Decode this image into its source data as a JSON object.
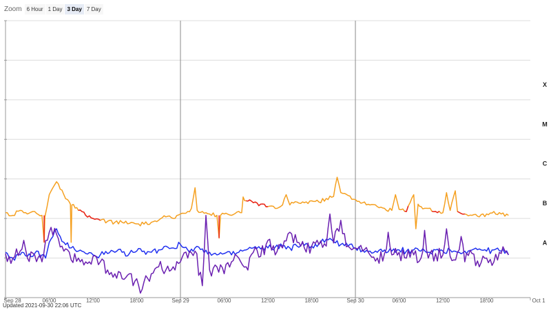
{
  "zoom": {
    "label": "Zoom",
    "options": [
      "6 Hour",
      "1 Day",
      "3 Day",
      "7 Day"
    ],
    "selected": "3 Day"
  },
  "updated_text": "Updated 2021-09-30 22:06 UTC",
  "colors": {
    "long": "#f5a020",
    "long_high": "#e8231e",
    "short": "#2030f0",
    "short_dim": "#6a1fb0",
    "grid": "#dcdcdc",
    "day_line": "#8a8a8a",
    "axis": "#999999"
  },
  "chart_data": {
    "type": "line",
    "title": "",
    "xlabel": "",
    "ylabel": "",
    "y_scale": "log",
    "ylim": [
      1e-09,
      0.01
    ],
    "xlim_hours": [
      0,
      69
    ],
    "grid": true,
    "flare_classes": [
      {
        "label": "X",
        "value": 0.0001
      },
      {
        "label": "M",
        "value": 1e-05
      },
      {
        "label": "C",
        "value": 1e-06
      },
      {
        "label": "B",
        "value": 1e-07
      },
      {
        "label": "A",
        "value": 1e-08
      }
    ],
    "x_ticks": [
      {
        "label": "Sep 28",
        "hour": 0,
        "major": true
      },
      {
        "label": "06:00",
        "hour": 6,
        "major": false
      },
      {
        "label": "12:00",
        "hour": 12,
        "major": false
      },
      {
        "label": "18:00",
        "hour": 18,
        "major": false
      },
      {
        "label": "Sep 29",
        "hour": 24,
        "major": true
      },
      {
        "label": "06:00",
        "hour": 30,
        "major": false
      },
      {
        "label": "12:00",
        "hour": 36,
        "major": false
      },
      {
        "label": "18:00",
        "hour": 42,
        "major": false
      },
      {
        "label": "Sep 30",
        "hour": 48,
        "major": true
      },
      {
        "label": "06:00",
        "hour": 54,
        "major": false
      },
      {
        "label": "12:00",
        "hour": 60,
        "major": false
      },
      {
        "label": "18:00",
        "hour": 66,
        "major": false
      },
      {
        "label": "Oct 1",
        "hour": 72,
        "major": true
      }
    ],
    "series": [
      {
        "key": "long",
        "points": [
          [
            0,
            1.4e-07
          ],
          [
            1,
            1.2e-07
          ],
          [
            2,
            1.6e-07
          ],
          [
            3,
            1.3e-07
          ],
          [
            4,
            1.5e-07
          ],
          [
            5,
            1.2e-07
          ],
          [
            5.3,
            2.5e-08
          ],
          [
            5.4,
            1.1e-07
          ],
          [
            6,
            4e-07
          ],
          [
            6.5,
            6e-07
          ],
          [
            7,
            8.5e-07
          ],
          [
            7.5,
            5.5e-07
          ],
          [
            8,
            4e-07
          ],
          [
            8.5,
            3e-07
          ],
          [
            8.9,
            2.3e-07
          ],
          [
            9,
            2.5e-08
          ],
          [
            9.1,
            2.2e-07
          ],
          [
            10,
            1.6e-07
          ],
          [
            11,
            1.2e-07
          ],
          [
            12,
            1e-07
          ],
          [
            13,
            9e-08
          ],
          [
            14,
            8.5e-08
          ],
          [
            15,
            8e-08
          ],
          [
            16,
            8e-08
          ],
          [
            17,
            7.5e-08
          ],
          [
            18,
            7.3e-08
          ],
          [
            19,
            7.2e-08
          ],
          [
            20,
            8e-08
          ],
          [
            21,
            9e-08
          ],
          [
            22,
            1.1e-07
          ],
          [
            23,
            1e-07
          ],
          [
            24,
            1.3e-07
          ],
          [
            25,
            1.5e-07
          ],
          [
            25.5,
            1.8e-07
          ],
          [
            26,
            6e-07
          ],
          [
            26.3,
            1.6e-07
          ],
          [
            27,
            1.5e-07
          ],
          [
            28,
            1.3e-07
          ],
          [
            29,
            1.2e-07
          ],
          [
            29.3,
            3.2e-08
          ],
          [
            29.5,
            1.2e-07
          ],
          [
            30,
            1.3e-07
          ],
          [
            31,
            1.2e-07
          ],
          [
            32,
            1.5e-07
          ],
          [
            32.4,
            1.4e-07
          ],
          [
            32.6,
            3.5e-07
          ],
          [
            33,
            2.8e-07
          ],
          [
            34,
            2.5e-07
          ],
          [
            35,
            2.3e-07
          ],
          [
            36,
            2e-07
          ],
          [
            37,
            1.8e-07
          ],
          [
            38,
            2.2e-07
          ],
          [
            38.5,
            4e-07
          ],
          [
            39,
            2.2e-07
          ],
          [
            40,
            2.6e-07
          ],
          [
            41,
            2.5e-07
          ],
          [
            42,
            2.8e-07
          ],
          [
            43,
            2.6e-07
          ],
          [
            44,
            3.2e-07
          ],
          [
            45,
            3.6e-07
          ],
          [
            45.5,
            1.1e-06
          ],
          [
            46,
            4.5e-07
          ],
          [
            47,
            3.8e-07
          ],
          [
            48,
            3e-07
          ],
          [
            49,
            2.5e-07
          ],
          [
            50,
            2.2e-07
          ],
          [
            51,
            2e-07
          ],
          [
            52,
            1.8e-07
          ],
          [
            53,
            1.6e-07
          ],
          [
            53.5,
            4e-07
          ],
          [
            54,
            1.7e-07
          ],
          [
            55,
            1.5e-07
          ],
          [
            55.5,
            2.5e-07
          ],
          [
            56,
            4e-07
          ],
          [
            56.3,
            5.5e-08
          ],
          [
            56.6,
            2.3e-07
          ],
          [
            57,
            2e-07
          ],
          [
            58,
            1.8e-07
          ],
          [
            59,
            1.5e-07
          ],
          [
            60,
            1.4e-07
          ],
          [
            60.5,
            4.5e-07
          ],
          [
            61,
            1.6e-07
          ],
          [
            61.7,
            5e-07
          ],
          [
            62,
            1.5e-07
          ],
          [
            63,
            1.3e-07
          ],
          [
            64,
            1.2e-07
          ],
          [
            65,
            1.1e-07
          ],
          [
            66,
            1.3e-07
          ],
          [
            67,
            1.5e-07
          ],
          [
            68,
            1.3e-07
          ],
          [
            69,
            1.2e-07
          ]
        ]
      },
      {
        "key": "short",
        "points": [
          [
            0,
            1.4e-08
          ],
          [
            1,
            1e-08
          ],
          [
            2,
            1.2e-08
          ],
          [
            3,
            1.1e-08
          ],
          [
            4,
            1.3e-08
          ],
          [
            5,
            1.2e-08
          ],
          [
            5.5,
            1e-08
          ],
          [
            6,
            2.5e-08
          ],
          [
            6.5,
            3.5e-08
          ],
          [
            7,
            5.5e-08
          ],
          [
            7.5,
            3.5e-08
          ],
          [
            8,
            2.5e-08
          ],
          [
            9,
            1.8e-08
          ],
          [
            10,
            1.5e-08
          ],
          [
            11,
            1.3e-08
          ],
          [
            12,
            1.2e-08
          ],
          [
            13,
            1.2e-08
          ],
          [
            14,
            1.3e-08
          ],
          [
            15,
            1.4e-08
          ],
          [
            16,
            1.4e-08
          ],
          [
            17,
            1.3e-08
          ],
          [
            18,
            1.5e-08
          ],
          [
            19,
            1.5e-08
          ],
          [
            20,
            1.4e-08
          ],
          [
            21,
            1.6e-08
          ],
          [
            22,
            2e-08
          ],
          [
            23,
            1.8e-08
          ],
          [
            24,
            2.2e-08
          ],
          [
            25,
            1.6e-08
          ],
          [
            26,
            1.8e-08
          ],
          [
            27,
            1.7e-08
          ],
          [
            28,
            1.4e-08
          ],
          [
            29,
            1.2e-08
          ],
          [
            30,
            1.3e-08
          ],
          [
            31,
            1.2e-08
          ],
          [
            32,
            1.4e-08
          ],
          [
            33,
            1.6e-08
          ],
          [
            34,
            1.8e-08
          ],
          [
            35,
            1.7e-08
          ],
          [
            36,
            1.8e-08
          ],
          [
            37,
            1.9e-08
          ],
          [
            38,
            2e-08
          ],
          [
            39,
            1.8e-08
          ],
          [
            40,
            2e-08
          ],
          [
            41,
            2.1e-08
          ],
          [
            42,
            2e-08
          ],
          [
            43,
            2.3e-08
          ],
          [
            44,
            3e-08
          ],
          [
            45,
            2.6e-08
          ],
          [
            46,
            2.2e-08
          ],
          [
            47,
            2e-08
          ],
          [
            48,
            1.8e-08
          ],
          [
            49,
            1.6e-08
          ],
          [
            50,
            1.5e-08
          ],
          [
            51,
            1.4e-08
          ],
          [
            52,
            1.6e-08
          ],
          [
            53,
            1.5e-08
          ],
          [
            54,
            1.6e-08
          ],
          [
            55,
            1.5e-08
          ],
          [
            56,
            1.6e-08
          ],
          [
            57,
            1.5e-08
          ],
          [
            58,
            1.4e-08
          ],
          [
            59,
            1.6e-08
          ],
          [
            60,
            1.5e-08
          ],
          [
            61,
            1.6e-08
          ],
          [
            62,
            1.4e-08
          ],
          [
            63,
            1.5e-08
          ],
          [
            64,
            1.6e-08
          ],
          [
            65,
            1.7e-08
          ],
          [
            66,
            1.5e-08
          ],
          [
            67,
            1.6e-08
          ],
          [
            68,
            1.5e-08
          ],
          [
            69,
            1.2e-08
          ]
        ]
      },
      {
        "key": "short_dim",
        "points": [
          [
            0,
            1.3e-08
          ],
          [
            1,
            1e-08
          ],
          [
            2,
            1.5e-08
          ],
          [
            2.5,
            2.8e-08
          ],
          [
            3,
            1e-08
          ],
          [
            4,
            1.2e-08
          ],
          [
            5,
            8e-09
          ],
          [
            6,
            4.5e-08
          ],
          [
            7,
            4e-08
          ],
          [
            8,
            1.5e-08
          ],
          [
            9,
            9e-09
          ],
          [
            10,
            1e-08
          ],
          [
            11,
            8e-09
          ],
          [
            12,
            1.1e-08
          ],
          [
            13,
            8e-09
          ],
          [
            14,
            5e-09
          ],
          [
            15,
            4e-09
          ],
          [
            16,
            3e-09
          ],
          [
            17,
            4e-09
          ],
          [
            17.5,
            2e-09
          ],
          [
            18,
            3e-09
          ],
          [
            18.5,
            1.3e-09
          ],
          [
            19,
            2.5e-09
          ],
          [
            20,
            4e-09
          ],
          [
            21,
            6e-09
          ],
          [
            22,
            5e-09
          ],
          [
            23,
            6e-09
          ],
          [
            24,
            8e-09
          ],
          [
            25,
            1e-08
          ],
          [
            26,
            1.5e-08
          ],
          [
            27,
            2e-09
          ],
          [
            27.5,
            1.2e-07
          ],
          [
            28,
            5e-09
          ],
          [
            29,
            6e-09
          ],
          [
            30,
            4e-09
          ],
          [
            31,
            8e-09
          ],
          [
            32,
            1e-08
          ],
          [
            33,
            6e-09
          ],
          [
            34,
            1.4e-08
          ],
          [
            34.5,
            1.6e-08
          ],
          [
            35,
            1.1e-08
          ],
          [
            36,
            2.8e-08
          ],
          [
            37,
            1.2e-08
          ],
          [
            38,
            1.8e-08
          ],
          [
            39,
            4.5e-08
          ],
          [
            40,
            2.5e-08
          ],
          [
            41,
            1.8e-08
          ],
          [
            42,
            2e-08
          ],
          [
            43,
            2.2e-08
          ],
          [
            44,
            2e-08
          ],
          [
            44.5,
            1.3e-07
          ],
          [
            45,
            2.4e-08
          ],
          [
            46,
            9e-08
          ],
          [
            47,
            2e-08
          ],
          [
            48,
            1.8e-08
          ],
          [
            49,
            1.5e-08
          ],
          [
            50,
            1.2e-08
          ],
          [
            51,
            1e-08
          ],
          [
            52,
            1.3e-08
          ],
          [
            52.5,
            4.5e-08
          ],
          [
            53,
            1.2e-08
          ],
          [
            54,
            1.4e-08
          ],
          [
            55,
            1e-08
          ],
          [
            56,
            1.2e-08
          ],
          [
            57,
            1e-08
          ],
          [
            57.5,
            5e-08
          ],
          [
            58,
            1e-08
          ],
          [
            59,
            1.3e-08
          ],
          [
            60,
            1.2e-08
          ],
          [
            60.5,
            5.5e-08
          ],
          [
            61,
            1.1e-08
          ],
          [
            62,
            1.4e-08
          ],
          [
            62.5,
            3.5e-08
          ],
          [
            63,
            8e-09
          ],
          [
            64,
            1.3e-08
          ],
          [
            65,
            6e-09
          ],
          [
            66,
            1e-08
          ],
          [
            67,
            8e-09
          ],
          [
            68,
            1.3e-08
          ],
          [
            69,
            1.2e-08
          ]
        ]
      }
    ]
  }
}
